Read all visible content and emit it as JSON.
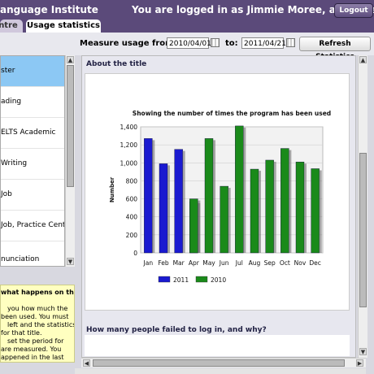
{
  "header": {
    "brand": "anguage Institute",
    "user_text": "You are logged in as Jimmie Moree, a teacher.",
    "logout_label": "Logout"
  },
  "tabs": [
    {
      "label": "ntre"
    },
    {
      "label": "Usage statistics"
    }
  ],
  "toolbar": {
    "from_label": "Measure usage from:",
    "from_value": "2010/04/01",
    "to_label": "to:",
    "to_value": "2011/04/21",
    "refresh_label": "Refresh Statistics"
  },
  "left_list": {
    "items": [
      {
        "label": "ster"
      },
      {
        "label": "ading"
      },
      {
        "label": "ELTS Academic"
      },
      {
        "label": "Writing"
      },
      {
        "label": "Job"
      },
      {
        "label": "Job, Practice Centre"
      },
      {
        "label": "nunciation"
      }
    ]
  },
  "help": {
    "title": "what happens on this",
    "lines": [
      "you how much the",
      "been used. You must",
      "left and the statistics",
      "for that title.",
      "set the period for",
      "are measured. You",
      "appened in the last"
    ]
  },
  "main": {
    "section1_title": "About the title",
    "section2_title": "How many people failed to log in, and why?"
  },
  "chart_data": {
    "type": "bar",
    "title": "Showing the number of times the program has been used",
    "ylabel": "Number",
    "xlabel": "",
    "ylim": [
      0,
      1400
    ],
    "yticks": [
      "0",
      "200",
      "400",
      "600",
      "800",
      "1,000",
      "1,200",
      "1,400"
    ],
    "categories": [
      "Jan",
      "Feb",
      "Mar",
      "Apr",
      "May",
      "Jun",
      "Jul",
      "Aug",
      "Sep",
      "Oct",
      "Nov",
      "Dec"
    ],
    "series": [
      {
        "name": "2011",
        "color": "#1a1ad0",
        "values": [
          1270,
          990,
          1150,
          570,
          0,
          0,
          0,
          0,
          0,
          0,
          0,
          0
        ]
      },
      {
        "name": "2010",
        "color": "#1a8a1a",
        "values": [
          0,
          0,
          0,
          600,
          1270,
          740,
          1410,
          930,
          1030,
          1160,
          1010,
          935
        ]
      }
    ],
    "legend": "bottom",
    "grid": true
  }
}
